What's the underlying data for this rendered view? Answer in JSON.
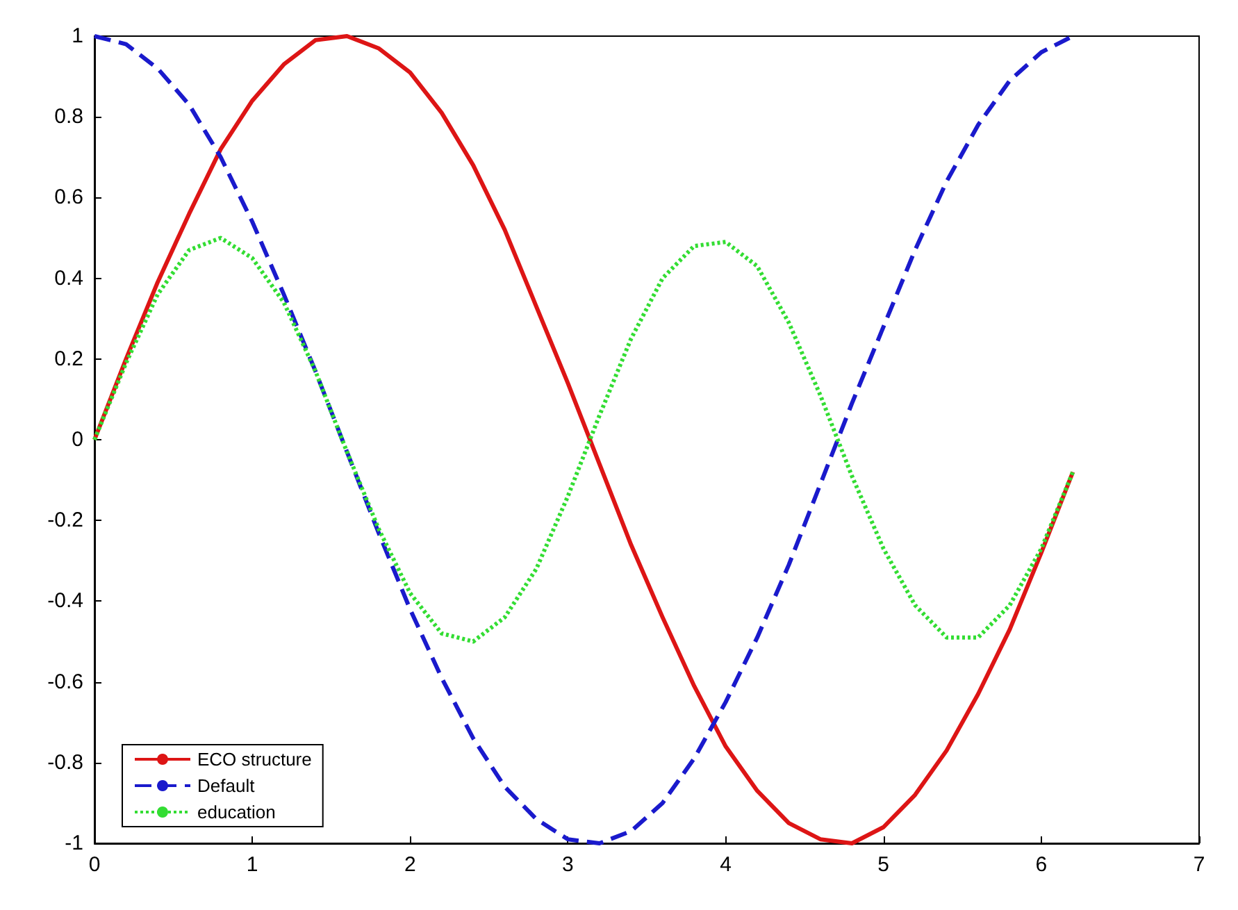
{
  "chart_data": {
    "type": "line",
    "x": [
      0,
      0.2,
      0.4,
      0.6,
      0.8,
      1,
      1.2,
      1.4,
      1.6,
      1.8,
      2,
      2.2,
      2.4,
      2.6,
      2.8,
      3,
      3.2,
      3.4,
      3.6,
      3.8,
      4,
      4.2,
      4.4,
      4.6,
      4.8,
      5,
      5.2,
      5.4,
      5.6,
      5.8,
      6,
      6.2
    ],
    "series": [
      {
        "name": "ECO structure",
        "color": "#dd1515",
        "line_style": "solid",
        "values": [
          0,
          0.2,
          0.39,
          0.56,
          0.72,
          0.84,
          0.93,
          0.99,
          1.0,
          0.97,
          0.91,
          0.81,
          0.68,
          0.52,
          0.33,
          0.14,
          -0.06,
          -0.26,
          -0.44,
          -0.61,
          -0.76,
          -0.87,
          -0.95,
          -0.99,
          -1.0,
          -0.96,
          -0.88,
          -0.77,
          -0.63,
          -0.47,
          -0.28,
          -0.08
        ]
      },
      {
        "name": "Default",
        "color": "#1a1acc",
        "line_style": "dashed",
        "values": [
          1,
          0.98,
          0.92,
          0.83,
          0.7,
          0.54,
          0.36,
          0.17,
          -0.03,
          -0.23,
          -0.42,
          -0.59,
          -0.74,
          -0.86,
          -0.94,
          -0.99,
          -1.0,
          -0.97,
          -0.9,
          -0.79,
          -0.65,
          -0.49,
          -0.31,
          -0.11,
          0.09,
          0.28,
          0.47,
          0.64,
          0.78,
          0.89,
          0.96,
          1.0
        ]
      },
      {
        "name": "education",
        "color": "#33dd33",
        "line_style": "dotted",
        "values": [
          0,
          0.19,
          0.36,
          0.47,
          0.5,
          0.45,
          0.34,
          0.17,
          -0.03,
          -0.22,
          -0.38,
          -0.48,
          -0.5,
          -0.44,
          -0.32,
          -0.14,
          0.06,
          0.25,
          0.4,
          0.48,
          0.49,
          0.43,
          0.29,
          0.11,
          -0.09,
          -0.27,
          -0.41,
          -0.49,
          -0.49,
          -0.41,
          -0.27,
          -0.08
        ]
      }
    ],
    "xlim": [
      0,
      7
    ],
    "xticks": [
      0,
      1,
      2,
      3,
      4,
      5,
      6,
      7
    ],
    "ylim": [
      -1,
      1
    ],
    "yticks": [
      -1,
      -0.8,
      -0.6,
      -0.4,
      -0.2,
      0,
      0.2,
      0.4,
      0.6,
      0.8,
      1
    ],
    "grid": false,
    "legend": "bottom left",
    "marker": "none"
  }
}
